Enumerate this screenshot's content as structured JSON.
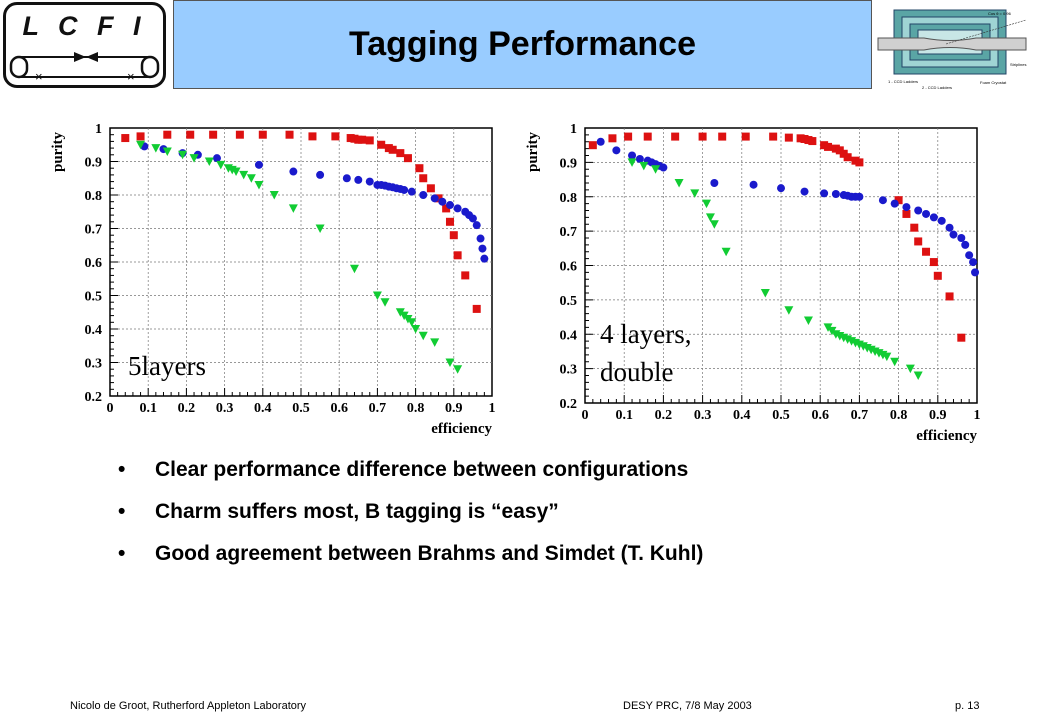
{
  "logo": {
    "text": "L C F I"
  },
  "title": "Tagging Performance",
  "detector_labels": {
    "angle": "Cos θ = 0.96",
    "ladders1": "1 - CCD Ladders",
    "ladders2": "2 - CCD Ladders",
    "striplines": "Striplines",
    "cryostat": "Foam Cryostat"
  },
  "chart_data": [
    {
      "type": "scatter",
      "title": "",
      "xlabel": "efficiency",
      "ylabel": "purity",
      "xlim": [
        0,
        1
      ],
      "ylim": [
        0.2,
        1
      ],
      "x_ticks": [
        "0",
        "0.1",
        "0.2",
        "0.3",
        "0.4",
        "0.5",
        "0.6",
        "0.7",
        "0.8",
        "0.9",
        "1"
      ],
      "y_ticks": [
        "0.2",
        "0.3",
        "0.4",
        "0.5",
        "0.6",
        "0.7",
        "0.8",
        "0.9",
        "1"
      ],
      "grid": true,
      "annotation": "5layers",
      "series": [
        {
          "marker": "square",
          "color": "#dd1111",
          "x": [
            0.04,
            0.08,
            0.15,
            0.21,
            0.27,
            0.34,
            0.4,
            0.47,
            0.53,
            0.59,
            0.63,
            0.64,
            0.65,
            0.66,
            0.68,
            0.71,
            0.73,
            0.74,
            0.76,
            0.78,
            0.81,
            0.82,
            0.84,
            0.86,
            0.88,
            0.89,
            0.9,
            0.91,
            0.93,
            0.96
          ],
          "y": [
            0.97,
            0.975,
            0.98,
            0.98,
            0.98,
            0.98,
            0.98,
            0.98,
            0.975,
            0.975,
            0.97,
            0.968,
            0.965,
            0.965,
            0.963,
            0.95,
            0.94,
            0.935,
            0.925,
            0.91,
            0.88,
            0.85,
            0.82,
            0.79,
            0.76,
            0.72,
            0.68,
            0.62,
            0.56,
            0.46
          ]
        },
        {
          "marker": "circle",
          "color": "#1a1acc",
          "x": [
            0.09,
            0.14,
            0.19,
            0.23,
            0.28,
            0.39,
            0.48,
            0.55,
            0.62,
            0.65,
            0.68,
            0.7,
            0.71,
            0.72,
            0.73,
            0.74,
            0.75,
            0.76,
            0.77,
            0.79,
            0.82,
            0.85,
            0.87,
            0.89,
            0.91,
            0.93,
            0.94,
            0.95,
            0.96,
            0.97,
            0.975,
            0.98
          ],
          "y": [
            0.945,
            0.937,
            0.925,
            0.92,
            0.91,
            0.89,
            0.87,
            0.86,
            0.85,
            0.845,
            0.84,
            0.83,
            0.83,
            0.828,
            0.825,
            0.823,
            0.82,
            0.818,
            0.815,
            0.81,
            0.8,
            0.79,
            0.78,
            0.77,
            0.76,
            0.75,
            0.74,
            0.73,
            0.71,
            0.67,
            0.64,
            0.61
          ]
        },
        {
          "marker": "triangle-down",
          "color": "#11cc33",
          "x": [
            0.08,
            0.12,
            0.15,
            0.19,
            0.22,
            0.26,
            0.29,
            0.31,
            0.32,
            0.33,
            0.35,
            0.37,
            0.39,
            0.43,
            0.48,
            0.55,
            0.64,
            0.7,
            0.72,
            0.76,
            0.77,
            0.78,
            0.79,
            0.8,
            0.82,
            0.85,
            0.89,
            0.91
          ],
          "y": [
            0.95,
            0.94,
            0.93,
            0.92,
            0.91,
            0.9,
            0.89,
            0.88,
            0.875,
            0.87,
            0.86,
            0.85,
            0.83,
            0.8,
            0.76,
            0.7,
            0.58,
            0.5,
            0.48,
            0.45,
            0.44,
            0.43,
            0.42,
            0.4,
            0.38,
            0.36,
            0.3,
            0.28
          ]
        }
      ]
    },
    {
      "type": "scatter",
      "title": "",
      "xlabel": "efficiency",
      "ylabel": "purity",
      "xlim": [
        0,
        1
      ],
      "ylim": [
        0.2,
        1
      ],
      "x_ticks": [
        "0",
        "0.1",
        "0.2",
        "0.3",
        "0.4",
        "0.5",
        "0.6",
        "0.7",
        "0.8",
        "0.9",
        "1"
      ],
      "y_ticks": [
        "0.2",
        "0.3",
        "0.4",
        "0.5",
        "0.6",
        "0.7",
        "0.8",
        "0.9",
        "1"
      ],
      "grid": true,
      "annotation": "4 layers, double",
      "series": [
        {
          "marker": "square",
          "color": "#dd1111",
          "x": [
            0.02,
            0.07,
            0.11,
            0.16,
            0.23,
            0.3,
            0.35,
            0.41,
            0.48,
            0.52,
            0.55,
            0.56,
            0.57,
            0.58,
            0.61,
            0.62,
            0.64,
            0.65,
            0.66,
            0.67,
            0.69,
            0.7,
            0.8,
            0.82,
            0.84,
            0.85,
            0.87,
            0.89,
            0.9,
            0.93,
            0.96
          ],
          "y": [
            0.95,
            0.97,
            0.975,
            0.975,
            0.975,
            0.975,
            0.975,
            0.975,
            0.975,
            0.972,
            0.97,
            0.968,
            0.965,
            0.962,
            0.95,
            0.945,
            0.94,
            0.935,
            0.925,
            0.915,
            0.905,
            0.9,
            0.79,
            0.75,
            0.71,
            0.67,
            0.64,
            0.61,
            0.57,
            0.51,
            0.39
          ]
        },
        {
          "marker": "circle",
          "color": "#1a1acc",
          "x": [
            0.04,
            0.08,
            0.12,
            0.14,
            0.16,
            0.17,
            0.18,
            0.19,
            0.2,
            0.33,
            0.43,
            0.5,
            0.56,
            0.61,
            0.64,
            0.66,
            0.67,
            0.68,
            0.69,
            0.7,
            0.76,
            0.79,
            0.82,
            0.85,
            0.87,
            0.89,
            0.91,
            0.93,
            0.94,
            0.96,
            0.97,
            0.98,
            0.99,
            0.995
          ],
          "y": [
            0.96,
            0.935,
            0.92,
            0.91,
            0.905,
            0.9,
            0.895,
            0.89,
            0.885,
            0.84,
            0.835,
            0.825,
            0.815,
            0.81,
            0.808,
            0.805,
            0.803,
            0.8,
            0.8,
            0.8,
            0.79,
            0.78,
            0.77,
            0.76,
            0.75,
            0.74,
            0.73,
            0.71,
            0.69,
            0.68,
            0.66,
            0.63,
            0.61,
            0.58
          ]
        },
        {
          "marker": "triangle-down",
          "color": "#11cc33",
          "x": [
            0.12,
            0.15,
            0.18,
            0.24,
            0.28,
            0.31,
            0.32,
            0.33,
            0.36,
            0.46,
            0.52,
            0.57,
            0.62,
            0.63,
            0.64,
            0.65,
            0.66,
            0.67,
            0.68,
            0.69,
            0.7,
            0.71,
            0.72,
            0.73,
            0.74,
            0.75,
            0.76,
            0.77,
            0.79,
            0.83,
            0.85
          ],
          "y": [
            0.9,
            0.89,
            0.88,
            0.84,
            0.81,
            0.78,
            0.74,
            0.72,
            0.64,
            0.52,
            0.47,
            0.44,
            0.42,
            0.41,
            0.4,
            0.395,
            0.39,
            0.385,
            0.38,
            0.375,
            0.37,
            0.365,
            0.36,
            0.355,
            0.35,
            0.345,
            0.34,
            0.335,
            0.32,
            0.3,
            0.28
          ]
        }
      ]
    }
  ],
  "bullets": [
    "Clear performance difference between configurations",
    "Charm suffers most, B tagging is “easy”",
    "Good agreement between Brahms and Simdet (T. Kuhl)"
  ],
  "footer": {
    "author": "Nicolo de Groot, Rutherford Appleton Laboratory",
    "event": "DESY PRC, 7/8 May 2003",
    "page": "p. 13"
  }
}
